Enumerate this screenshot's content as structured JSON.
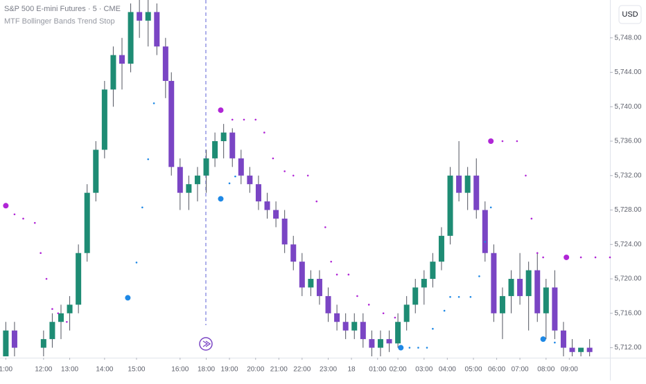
{
  "chart_data": {
    "type": "candlestick",
    "title": "S&P 500 E-mini Futures · 5 · CME",
    "subtitle": "MTF Bollinger Bands Trend Stop",
    "currency": "USD",
    "up_color": "#1e8c74",
    "down_color": "#7a45c4",
    "xlim": [
      0,
      210
    ],
    "xticks": [
      {
        "value": 2,
        "label": "1:00"
      },
      {
        "value": 15,
        "label": "12:00"
      },
      {
        "value": 24,
        "label": "13:00"
      },
      {
        "value": 36,
        "label": "14:00"
      },
      {
        "value": 47,
        "label": "15:00"
      },
      {
        "value": 62,
        "label": "16:00"
      },
      {
        "value": 71,
        "label": "18:00"
      },
      {
        "value": 79,
        "label": "19:00"
      },
      {
        "value": 88,
        "label": "20:00"
      },
      {
        "value": 96,
        "label": "21:00"
      },
      {
        "value": 104,
        "label": "22:00"
      },
      {
        "value": 113,
        "label": "23:00"
      },
      {
        "value": 121,
        "label": "18"
      },
      {
        "value": 130,
        "label": "01:00"
      },
      {
        "value": 137,
        "label": "02:00"
      },
      {
        "value": 146,
        "label": "03:00"
      },
      {
        "value": 154,
        "label": "04:00"
      },
      {
        "value": 163,
        "label": "05:00"
      },
      {
        "value": 171,
        "label": "06:00"
      },
      {
        "value": 179,
        "label": "07:00"
      },
      {
        "value": 188,
        "label": "08:00"
      },
      {
        "value": 196,
        "label": "09:00"
      }
    ],
    "ylim": [
      5711,
      5752.4
    ],
    "yticks": [
      {
        "value": 5712,
        "label": "5,712.00"
      },
      {
        "value": 5716,
        "label": "5,716.00"
      },
      {
        "value": 5720,
        "label": "5,720.00"
      },
      {
        "value": 5724,
        "label": "5,724.00"
      },
      {
        "value": 5728,
        "label": "5,728.00"
      },
      {
        "value": 5732,
        "label": "5,732.00"
      },
      {
        "value": 5736,
        "label": "5,736.00"
      },
      {
        "value": 5740,
        "label": "5,740.00"
      },
      {
        "value": 5744,
        "label": "5,744.00"
      },
      {
        "value": 5748,
        "label": "5,748.00"
      }
    ],
    "candles": {
      "x": [
        2,
        5,
        15,
        18,
        21,
        24,
        27,
        30,
        33,
        36,
        39,
        42,
        45,
        48,
        51,
        54,
        57,
        59,
        62,
        65,
        68,
        71,
        74,
        77,
        80,
        83,
        86,
        89,
        92,
        95,
        98,
        101,
        104,
        107,
        110,
        113,
        116,
        119,
        122,
        125,
        128,
        131,
        134,
        137,
        140,
        143,
        146,
        149,
        152,
        155,
        158,
        161,
        164,
        167,
        170,
        173,
        176,
        179,
        182,
        185,
        188,
        191,
        194,
        197,
        200,
        203
      ],
      "open": [
        5711,
        5714,
        5712,
        5713,
        5715,
        5716,
        5717,
        5723,
        5730,
        5735,
        5742,
        5746,
        5745,
        5751,
        5750,
        5751,
        5747,
        5743,
        5733,
        5730,
        5731,
        5732,
        5734,
        5736,
        5737,
        5734,
        5732,
        5731,
        5729,
        5728,
        5727,
        5724,
        5722,
        5719,
        5720,
        5718,
        5716,
        5715,
        5714,
        5715,
        5713,
        5712,
        5713,
        5712.5,
        5715,
        5717,
        5719,
        5720,
        5722,
        5725,
        5732,
        5730,
        5732,
        5728,
        5723,
        5716,
        5718,
        5720,
        5718,
        5721,
        5716,
        5719,
        5714,
        5712,
        5711.5,
        5712
      ],
      "high": [
        5715,
        5715,
        5714,
        5716,
        5717,
        5718,
        5724,
        5731,
        5736,
        5743,
        5747,
        5748,
        5752,
        5752.4,
        5752.4,
        5752,
        5748,
        5744,
        5734,
        5732,
        5733,
        5735,
        5737,
        5738,
        5737.5,
        5735,
        5733,
        5732,
        5730,
        5729,
        5728,
        5725,
        5723,
        5721,
        5721,
        5719,
        5717,
        5716,
        5716,
        5716,
        5714,
        5714,
        5714,
        5716,
        5718,
        5720,
        5721,
        5723,
        5726,
        5733,
        5736,
        5733,
        5734,
        5729,
        5724,
        5719,
        5721,
        5723,
        5722,
        5723,
        5720,
        5721,
        5715,
        5713,
        5712,
        5713
      ],
      "low": [
        5711,
        5711,
        5711,
        5712,
        5713,
        5714,
        5716,
        5722,
        5729,
        5734,
        5740,
        5742,
        5744,
        5748,
        5747,
        5746,
        5741,
        5732,
        5728,
        5728,
        5729,
        5730,
        5733,
        5734,
        5733,
        5731,
        5730,
        5728,
        5727,
        5726,
        5723,
        5721,
        5718,
        5718,
        5717,
        5715,
        5714,
        5713,
        5713,
        5712,
        5711,
        5711,
        5711.5,
        5712,
        5714,
        5716,
        5717,
        5719,
        5721,
        5724,
        5729,
        5728,
        5727,
        5722,
        5715,
        5713,
        5716,
        5717,
        5714,
        5715,
        5713,
        5713,
        5711,
        5711,
        5711,
        5711
      ],
      "close": [
        5714,
        5712,
        5713,
        5715,
        5716,
        5717,
        5723,
        5730,
        5735,
        5742,
        5746,
        5745,
        5751,
        5750,
        5751,
        5747,
        5743,
        5733,
        5730,
        5731,
        5732,
        5734,
        5736,
        5737,
        5734,
        5732,
        5731,
        5729,
        5728,
        5727,
        5724,
        5722,
        5719,
        5720,
        5718,
        5716,
        5715,
        5714,
        5715,
        5713,
        5712,
        5713,
        5712.5,
        5715,
        5717,
        5719,
        5720,
        5722,
        5725,
        5732,
        5730,
        5732,
        5728,
        5723,
        5716,
        5718,
        5720,
        5718,
        5721,
        5716,
        5719,
        5714,
        5712,
        5711.5,
        5712,
        5711.5
      ]
    },
    "stops": [
      {
        "color": "#b026d6",
        "x": [
          2,
          5,
          8,
          12,
          14,
          16,
          18,
          20,
          23,
          24,
          76,
          80,
          84,
          88,
          91,
          94,
          98,
          101,
          106,
          109,
          112,
          114,
          116,
          120,
          123,
          127,
          132,
          136,
          137,
          169,
          173,
          178,
          181,
          183,
          185,
          187,
          190,
          195,
          200,
          205,
          210
        ],
        "values": [
          5728.5,
          5727.5,
          5727,
          5726.5,
          5723,
          5720,
          5716.5,
          5716,
          5715,
          null,
          5739.6,
          5738.5,
          5738.5,
          5738.5,
          5737,
          5734,
          5732.5,
          5732,
          5732,
          5729,
          5726,
          5722,
          5720.5,
          5720.5,
          5718,
          5717,
          5716,
          5715.5,
          null,
          5736,
          5736,
          5736,
          5732,
          5727,
          5723,
          5722.5,
          null,
          5722.5,
          5722.5,
          5722.5,
          5722.5
        ]
      },
      {
        "color": "#1e88e5",
        "x": [
          44,
          47,
          49,
          51,
          53,
          55,
          76,
          79,
          81,
          83,
          138,
          141,
          144,
          147,
          149,
          153,
          155,
          158,
          162,
          165,
          167,
          169,
          170,
          187,
          191
        ],
        "values": [
          5717.8,
          5721.9,
          5728.3,
          5733.9,
          5740.4,
          null,
          5729.3,
          5731.1,
          5731.9,
          null,
          5712,
          5712,
          5712,
          5712,
          5714.2,
          5716.3,
          5717.9,
          5717.9,
          5717.9,
          5720.3,
          5724.3,
          5728.3,
          null,
          5713,
          5712.6
        ]
      }
    ]
  }
}
